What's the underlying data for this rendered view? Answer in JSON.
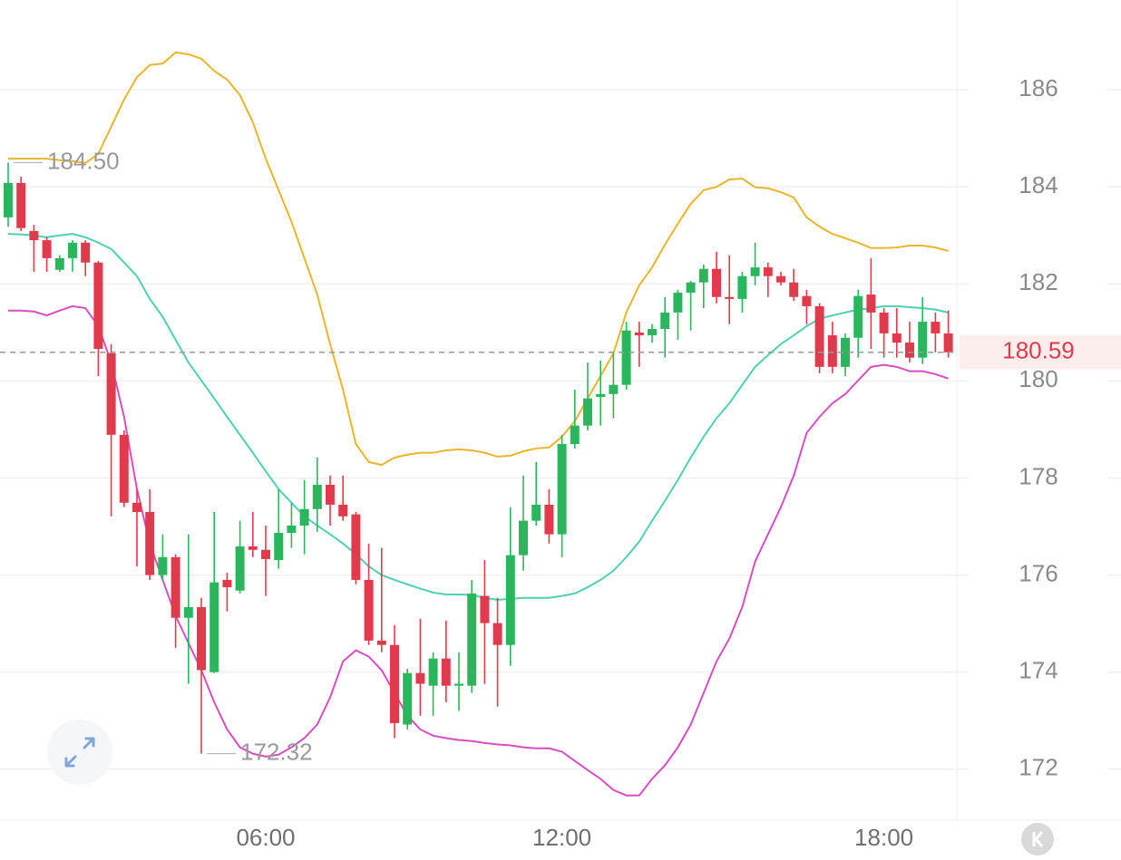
{
  "chart_data": {
    "type": "candlestick",
    "categories": [
      null,
      null,
      null,
      null,
      null,
      null,
      null,
      null,
      null,
      null,
      null,
      null,
      null,
      null,
      null,
      null,
      null,
      null,
      null,
      null,
      "06:00",
      null,
      null,
      null,
      null,
      null,
      null,
      null,
      null,
      null,
      null,
      null,
      null,
      null,
      null,
      null,
      null,
      null,
      null,
      null,
      null,
      null,
      null,
      "12:00",
      null,
      null,
      null,
      null,
      null,
      null,
      null,
      null,
      null,
      null,
      null,
      null,
      null,
      null,
      null,
      null,
      null,
      null,
      null,
      null,
      null,
      null,
      null,
      null,
      "18:00",
      null,
      null,
      null,
      null,
      null
    ],
    "open": [
      183.37,
      184.08,
      183.09,
      182.9,
      182.29,
      182.53,
      182.85,
      182.44,
      180.57,
      178.89,
      177.49,
      177.3,
      176.0,
      176.37,
      175.12,
      175.34,
      174.0,
      175.9,
      175.68,
      176.59,
      176.52,
      176.31,
      176.87,
      177.02,
      177.36,
      177.86,
      177.45,
      177.25,
      175.9,
      174.65,
      174.56,
      172.92,
      173.98,
      173.72,
      174.28,
      173.72,
      173.72,
      175.57,
      175.01,
      174.56,
      176.41,
      177.12,
      177.45,
      176.84,
      178.7,
      179.08,
      179.67,
      179.73,
      179.92,
      181.0,
      180.94,
      181.07,
      181.41,
      181.82,
      182.03,
      182.31,
      181.73,
      181.69,
      182.16,
      182.34,
      182.16,
      182.03,
      181.75,
      181.54,
      180.94,
      180.29,
      180.89,
      181.78,
      181.41,
      180.98,
      180.79,
      180.48,
      181.22,
      180.98
    ],
    "high": [
      184.5,
      184.21,
      183.22,
      182.96,
      182.59,
      182.9,
      182.9,
      182.47,
      180.76,
      178.98,
      177.77,
      177.77,
      176.84,
      176.43,
      176.84,
      175.53,
      177.3,
      176.05,
      177.12,
      177.3,
      177.02,
      177.77,
      177.49,
      177.96,
      178.42,
      178.05,
      178.05,
      177.3,
      176.65,
      176.56,
      174.97,
      174.07,
      175.1,
      174.41,
      175.06,
      174.41,
      175.9,
      176.31,
      175.53,
      177.4,
      178.05,
      178.33,
      177.77,
      178.89,
      179.82,
      180.38,
      180.42,
      180.57,
      181.22,
      181.22,
      181.17,
      181.73,
      181.88,
      182.06,
      182.4,
      182.66,
      182.59,
      182.25,
      182.85,
      182.44,
      182.25,
      182.31,
      181.88,
      181.6,
      181.22,
      180.98,
      181.88,
      182.53,
      181.5,
      181.5,
      181.22,
      181.73,
      181.41,
      181.45
    ],
    "low": [
      183.18,
      183.09,
      182.25,
      182.25,
      182.25,
      182.25,
      182.16,
      180.1,
      177.21,
      177.4,
      176.18,
      175.9,
      175.9,
      174.5,
      173.76,
      172.32,
      173.98,
      175.25,
      175.62,
      176.37,
      175.57,
      176.13,
      176.56,
      176.43,
      176.89,
      177.02,
      177.12,
      175.81,
      174.56,
      174.41,
      172.64,
      172.82,
      173.1,
      173.1,
      173.38,
      173.2,
      173.57,
      173.76,
      173.29,
      174.13,
      176.09,
      177.02,
      176.65,
      176.37,
      178.61,
      178.98,
      179.08,
      179.23,
      179.82,
      180.29,
      180.79,
      180.48,
      180.85,
      181.04,
      181.5,
      181.6,
      181.17,
      181.41,
      181.97,
      181.73,
      181.97,
      181.65,
      181.17,
      180.16,
      180.16,
      180.1,
      180.48,
      180.66,
      180.48,
      180.48,
      180.38,
      180.35,
      180.59,
      180.48
    ],
    "close": [
      184.08,
      183.15,
      182.9,
      182.53,
      182.53,
      182.85,
      182.44,
      180.66,
      178.89,
      177.49,
      177.3,
      176.0,
      176.37,
      175.12,
      175.34,
      174.04,
      175.85,
      175.75,
      176.59,
      176.52,
      176.33,
      176.87,
      177.02,
      177.36,
      177.86,
      177.45,
      177.21,
      175.9,
      174.65,
      174.56,
      172.95,
      173.98,
      173.76,
      174.28,
      173.72,
      173.76,
      175.62,
      175.01,
      174.56,
      176.41,
      177.12,
      177.45,
      176.84,
      178.7,
      179.08,
      179.64,
      179.73,
      179.92,
      181.04,
      180.94,
      181.07,
      181.41,
      181.82,
      182.03,
      182.31,
      181.73,
      181.69,
      182.16,
      182.34,
      182.16,
      182.03,
      181.73,
      181.54,
      180.29,
      180.29,
      180.89,
      181.75,
      181.41,
      180.98,
      180.79,
      180.48,
      181.22,
      180.98,
      180.59
    ],
    "up_color": "#2bb55c",
    "down_color": "#e03a4c",
    "bands": [
      {
        "color": "#e9b52c",
        "values": [
          184.58,
          184.58,
          184.58,
          184.58,
          184.55,
          184.53,
          184.49,
          184.68,
          185.24,
          185.8,
          186.26,
          186.51,
          186.54,
          186.77,
          186.73,
          186.64,
          186.39,
          186.21,
          185.89,
          185.33,
          184.58,
          183.93,
          183.28,
          182.53,
          181.78,
          180.76,
          179.82,
          178.7,
          178.33,
          178.27,
          178.42,
          178.48,
          178.52,
          178.52,
          178.57,
          178.59,
          178.57,
          178.52,
          178.44,
          178.46,
          178.55,
          178.61,
          178.63,
          178.85,
          179.17,
          179.64,
          180.1,
          180.57,
          181.41,
          181.97,
          182.34,
          182.81,
          183.24,
          183.65,
          183.93,
          184.0,
          184.15,
          184.17,
          183.99,
          183.97,
          183.89,
          183.78,
          183.37,
          183.18,
          183.03,
          182.94,
          182.85,
          182.74,
          182.74,
          182.75,
          182.79,
          182.79,
          182.75,
          182.68
        ]
      },
      {
        "color": "#4fd0b2",
        "values": [
          183.03,
          183.02,
          183.0,
          182.96,
          183.0,
          183.03,
          182.96,
          182.85,
          182.72,
          182.44,
          182.16,
          181.69,
          181.32,
          180.85,
          180.38,
          180.01,
          179.64,
          179.26,
          178.89,
          178.52,
          178.14,
          177.77,
          177.49,
          177.21,
          177.02,
          176.84,
          176.65,
          176.43,
          176.18,
          176.0,
          175.9,
          175.81,
          175.72,
          175.64,
          175.6,
          175.6,
          175.59,
          175.53,
          175.49,
          175.51,
          175.53,
          175.53,
          175.53,
          175.57,
          175.62,
          175.75,
          175.9,
          176.09,
          176.37,
          176.69,
          177.12,
          177.53,
          177.96,
          178.42,
          178.85,
          179.23,
          179.54,
          179.92,
          180.29,
          180.53,
          180.76,
          180.94,
          181.13,
          181.28,
          181.35,
          181.41,
          181.47,
          181.5,
          181.54,
          181.54,
          181.52,
          181.5,
          181.47,
          181.41
        ]
      },
      {
        "color": "#d64fbf",
        "values": [
          181.45,
          181.45,
          181.43,
          181.35,
          181.45,
          181.54,
          181.5,
          181.13,
          180.38,
          179.26,
          177.77,
          176.65,
          175.9,
          175.16,
          174.6,
          174.04,
          173.38,
          172.82,
          172.45,
          172.32,
          172.26,
          172.3,
          172.45,
          172.64,
          172.92,
          173.48,
          174.22,
          174.45,
          174.32,
          174.04,
          173.57,
          173.1,
          172.82,
          172.69,
          172.64,
          172.6,
          172.58,
          172.54,
          172.51,
          172.49,
          172.45,
          172.43,
          172.43,
          172.36,
          172.17,
          171.98,
          171.8,
          171.57,
          171.46,
          171.46,
          171.8,
          172.08,
          172.45,
          172.92,
          173.57,
          174.22,
          174.69,
          175.34,
          176.28,
          176.84,
          177.4,
          178.05,
          178.93,
          179.26,
          179.54,
          179.73,
          180.01,
          180.29,
          180.33,
          180.29,
          180.2,
          180.2,
          180.14,
          180.05
        ]
      }
    ],
    "high_marker": {
      "value": 184.5,
      "label": "184.50"
    },
    "low_marker": {
      "value": 172.32,
      "label": "172.32"
    },
    "last_price": {
      "value": 180.59,
      "label": "180.59",
      "color": "#e03a4c"
    },
    "ylim": [
      170.95,
      187.85
    ],
    "yticks": [
      172,
      174,
      176,
      178,
      180,
      182,
      184,
      186
    ],
    "grid": true
  }
}
